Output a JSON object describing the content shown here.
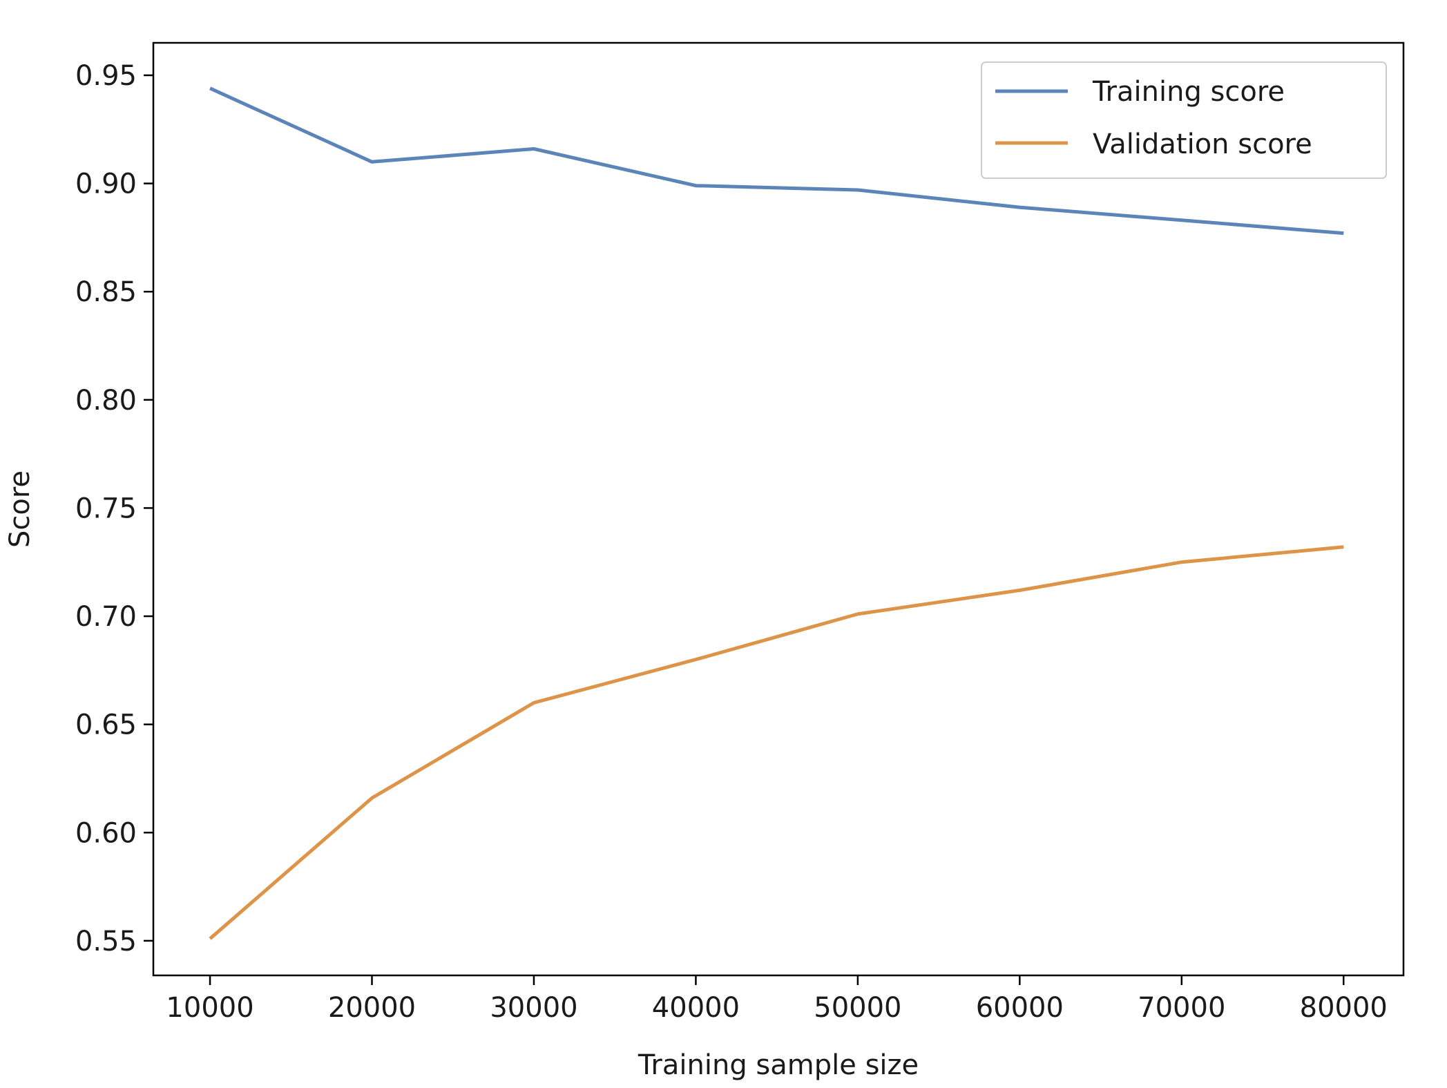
{
  "chart_data": {
    "type": "line",
    "title": "",
    "xlabel": "Training sample size",
    "ylabel": "Score",
    "x": [
      10000,
      20000,
      30000,
      40000,
      50000,
      60000,
      70000,
      80000
    ],
    "xticks": [
      "10000",
      "20000",
      "30000",
      "40000",
      "50000",
      "60000",
      "70000",
      "80000"
    ],
    "yticks": [
      "0.55",
      "0.60",
      "0.65",
      "0.70",
      "0.75",
      "0.80",
      "0.85",
      "0.90",
      "0.95"
    ],
    "xlim": [
      6500,
      83700
    ],
    "ylim": [
      0.534,
      0.965
    ],
    "grid": false,
    "legend_position": "top-right",
    "series": [
      {
        "name": "Training score",
        "color": "#5b84b8",
        "values": [
          0.944,
          0.91,
          0.916,
          0.899,
          0.897,
          0.889,
          0.883,
          0.877
        ]
      },
      {
        "name": "Validation score",
        "color": "#dd9449",
        "values": [
          0.551,
          0.616,
          0.66,
          0.68,
          0.701,
          0.712,
          0.725,
          0.732
        ]
      }
    ]
  }
}
